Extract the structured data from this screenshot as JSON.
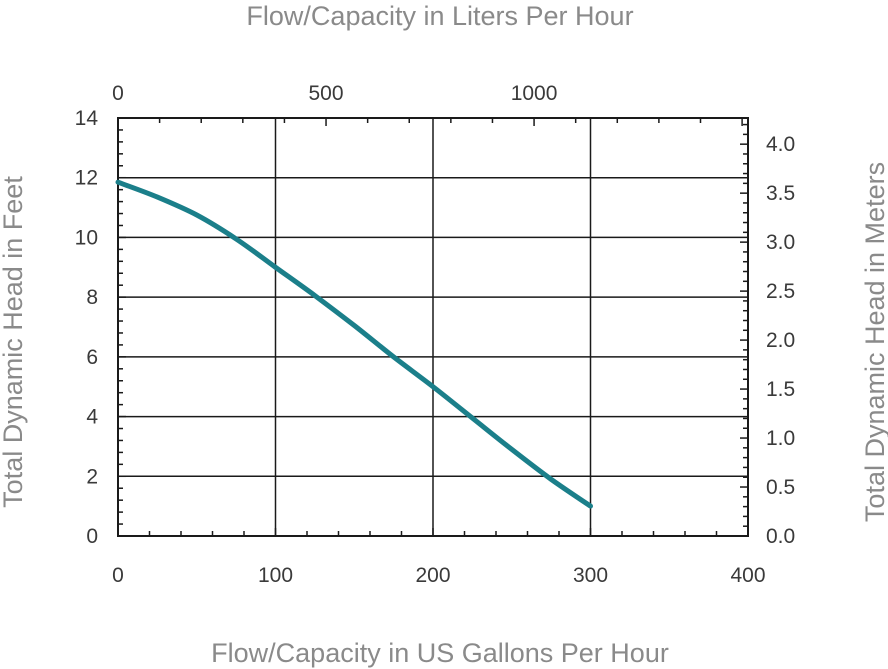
{
  "chart_data": {
    "type": "line",
    "bottom_axis": {
      "title": "Flow/Capacity in US Gallons Per Hour",
      "range": [
        0,
        400
      ],
      "ticks": [
        0,
        100,
        200,
        300,
        400
      ],
      "tick_labels": [
        "0",
        "100",
        "200",
        "300",
        "400"
      ]
    },
    "top_axis": {
      "title": "Flow/Capacity in Liters Per Hour",
      "ticks": [
        0,
        500,
        1000
      ],
      "tick_labels": [
        "0",
        "500",
        "1000"
      ]
    },
    "left_axis": {
      "title": "Total Dynamic Head in Feet",
      "range": [
        0,
        14
      ],
      "ticks": [
        0,
        2,
        4,
        6,
        8,
        10,
        12,
        14
      ],
      "tick_labels": [
        "0",
        "2",
        "4",
        "6",
        "8",
        "10",
        "12",
        "14"
      ]
    },
    "right_axis": {
      "title": "Total Dynamic Head in Meters",
      "ticks": [
        0.0,
        0.5,
        1.0,
        1.5,
        2.0,
        2.5,
        3.0,
        3.5,
        4.0
      ],
      "tick_labels": [
        "0.0",
        "0.5",
        "1.0",
        "1.5",
        "2.0",
        "2.5",
        "3.0",
        "3.5",
        "4.0"
      ]
    },
    "grid": true,
    "series": [
      {
        "color": "#1b7f8a",
        "x": [
          0,
          25,
          50,
          75,
          100,
          125,
          150,
          175,
          200,
          225,
          250,
          275,
          300
        ],
        "y": [
          11.85,
          11.35,
          10.75,
          9.95,
          9.0,
          8.05,
          7.05,
          6.0,
          5.0,
          3.95,
          2.9,
          1.9,
          1.0
        ]
      }
    ]
  }
}
